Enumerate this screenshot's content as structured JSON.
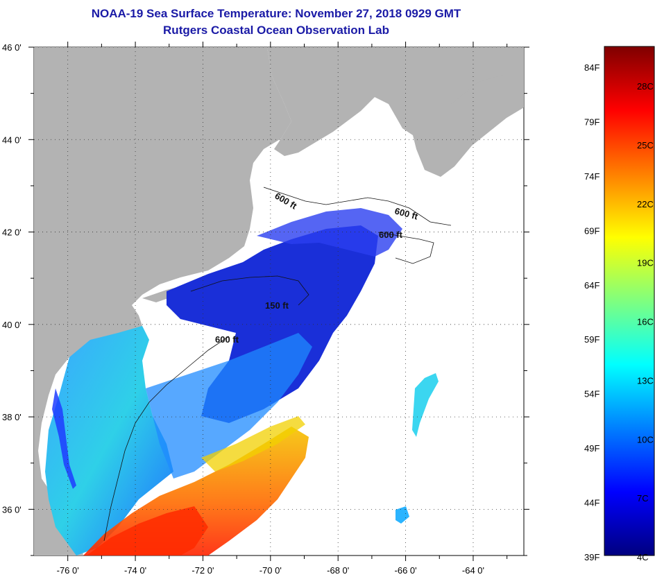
{
  "header": {
    "title": "NOAA-19 Sea Surface Temperature:  November 27, 2018 0929 GMT",
    "subtitle": "Rutgers Coastal Ocean Observation Lab"
  },
  "map": {
    "lon_range": [
      -77,
      -62.5
    ],
    "lat_range": [
      35,
      46
    ],
    "lon_ticks": [
      {
        "value": -76,
        "label": "-76 0'"
      },
      {
        "value": -74,
        "label": "-74 0'"
      },
      {
        "value": -72,
        "label": "-72 0'"
      },
      {
        "value": -70,
        "label": "-70 0'"
      },
      {
        "value": -68,
        "label": "-68 0'"
      },
      {
        "value": -66,
        "label": "-66 0'"
      },
      {
        "value": -64,
        "label": "-64 0'"
      }
    ],
    "lat_ticks": [
      {
        "value": 46,
        "label": "46 0'"
      },
      {
        "value": 44,
        "label": "44 0'"
      },
      {
        "value": 42,
        "label": "42 0'"
      },
      {
        "value": 40,
        "label": "40 0'"
      },
      {
        "value": 38,
        "label": "38 0'"
      },
      {
        "value": 36,
        "label": "36 0'"
      }
    ],
    "contour_labels": [
      "600 ft",
      "600 ft",
      "600 ft",
      "150 ft",
      "600 ft"
    ],
    "land_color": "#b3b3b3",
    "cloud_color": "#ffffff"
  },
  "colorbar": {
    "fahrenheit_labels": [
      "84F",
      "79F",
      "74F",
      "69F",
      "64F",
      "59F",
      "54F",
      "49F",
      "44F",
      "39F"
    ],
    "celsius_labels": [
      "28C",
      "25C",
      "22C",
      "19C",
      "16C",
      "13C",
      "10C",
      "7C",
      "4C"
    ],
    "colors": [
      "#00007f",
      "#0000ff",
      "#007fff",
      "#00ffff",
      "#7fff7f",
      "#ffff00",
      "#ff7f00",
      "#ff0000",
      "#7f0000"
    ]
  }
}
